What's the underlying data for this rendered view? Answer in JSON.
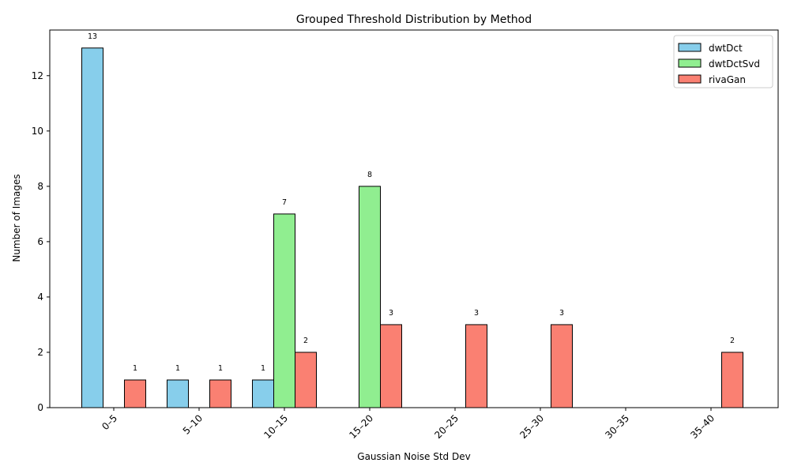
{
  "chart_data": {
    "type": "bar",
    "title": "Grouped Threshold Distribution by Method",
    "xlabel": "Gaussian Noise Std Dev",
    "ylabel": "Number of Images",
    "categories": [
      "0–5",
      "5–10",
      "10–15",
      "15–20",
      "20–25",
      "25–30",
      "30–35",
      "35–40"
    ],
    "series": [
      {
        "name": "dwtDct",
        "values": [
          13,
          1,
          1,
          0,
          0,
          0,
          0,
          0
        ],
        "color": "#87ceeb"
      },
      {
        "name": "dwtDctSvd",
        "values": [
          0,
          0,
          7,
          8,
          0,
          0,
          0,
          0
        ],
        "color": "#90ee90"
      },
      {
        "name": "rivaGan",
        "values": [
          1,
          1,
          2,
          3,
          3,
          3,
          0,
          2
        ],
        "color": "#fa8072"
      }
    ],
    "ylim": [
      0,
      13.65
    ],
    "yticks": [
      0,
      2,
      4,
      6,
      8,
      10,
      12
    ],
    "legend_position": "top-right",
    "grid": false
  }
}
